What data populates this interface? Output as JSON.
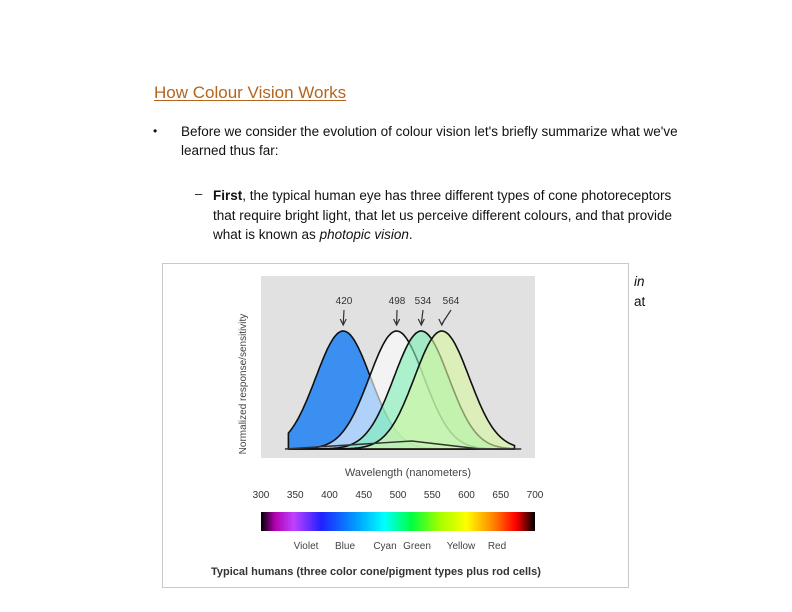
{
  "slide": {
    "title": "How Colour Vision Works",
    "bullet": "•",
    "paragraph": "Before we consider the evolution of colour vision  let's briefly summarize what we've learned thus far:",
    "sub_marker": "–",
    "sub_lead": "First",
    "sub_text_1": ", the typical human eye has three different types of cone photoreceptors that require bright light, that let us perceive different colours, and that provide what is known as ",
    "sub_italic": "photopic vision",
    "sub_end": ".",
    "trail_1": "in",
    "trail_2": "at"
  },
  "chart_data": {
    "type": "area",
    "ylabel": "Normalized response/sensitivity",
    "xlabel": "Wavelength (nanometers)",
    "xlim": [
      300,
      700
    ],
    "x_ticks": [
      300,
      350,
      400,
      450,
      500,
      550,
      600,
      650,
      700
    ],
    "peaks": [
      420,
      498,
      534,
      564
    ],
    "series": [
      {
        "peak": 420,
        "color": "#3a8ff0"
      },
      {
        "peak": 498,
        "color": "#ffffff"
      },
      {
        "peak": 534,
        "color": "#7cf0b4"
      },
      {
        "peak": 564,
        "color": "#d8f7a0"
      }
    ],
    "spectrum_labels": [
      "Violet",
      "Blue",
      "Cyan",
      "Green",
      "Yellow",
      "Red"
    ],
    "caption": "Typical humans (three color cone/pigment types plus rod cells)"
  }
}
